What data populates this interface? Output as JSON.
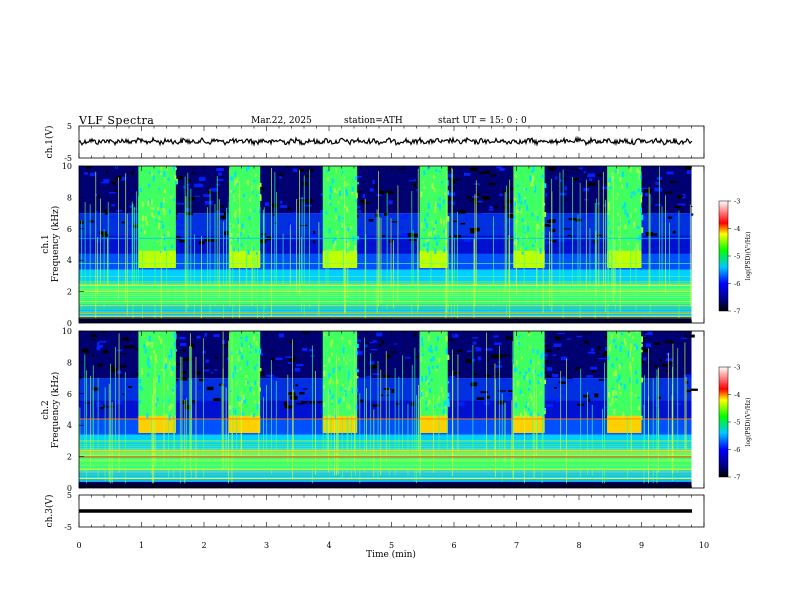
{
  "header": {
    "title": "VLF  Spectra",
    "date": "Mar.22, 2025",
    "station": "station=ATH",
    "start": "start  UT  =   15: 0  : 0"
  },
  "chart_data": [
    {
      "type": "line",
      "name": "ch1-waveform",
      "ylabel": "ch.1(V)",
      "ylim": [
        -5,
        5
      ],
      "yticks": [
        5,
        -5
      ],
      "xlim": [
        0,
        10
      ],
      "description_level": 0.2,
      "color": "#000000"
    },
    {
      "type": "heatmap",
      "name": "ch1-spectrogram",
      "ylabel": "ch.1\nFrequency  (kHz)",
      "ylabel_line1": "ch.1",
      "ylabel_line2": "Frequency  (kHz)",
      "ylim": [
        0,
        10
      ],
      "yticks": [
        "0",
        "2",
        "4",
        "6",
        "8",
        "10"
      ],
      "xlim": [
        0,
        9.8
      ],
      "colorbar": {
        "label": "log(PSD)(V²/Hz)",
        "range": [
          -7,
          -3
        ],
        "ticks": [
          "-3",
          "-4",
          "-5",
          "-6",
          "-7"
        ]
      },
      "bright_intervals_min": [
        [
          0.95,
          1.55
        ],
        [
          2.4,
          2.9
        ],
        [
          3.9,
          4.45
        ],
        [
          5.45,
          5.9
        ],
        [
          6.95,
          7.45
        ],
        [
          8.45,
          9.0
        ]
      ]
    },
    {
      "type": "heatmap",
      "name": "ch2-spectrogram",
      "ylabel_line1": "ch.2",
      "ylabel_line2": "Frequency  (kHz)",
      "ylim": [
        0,
        10
      ],
      "yticks": [
        "0",
        "2",
        "4",
        "6",
        "8",
        "10"
      ],
      "xlim": [
        0,
        9.8
      ],
      "colorbar": {
        "label": "log(PSD)(V²/Hz)",
        "range": [
          -7,
          -3
        ],
        "ticks": [
          "-3",
          "-4",
          "-5",
          "-6",
          "-7"
        ]
      },
      "bright_intervals_min": [
        [
          0.95,
          1.55
        ],
        [
          2.4,
          2.9
        ],
        [
          3.9,
          4.45
        ],
        [
          5.45,
          5.9
        ],
        [
          6.95,
          7.45
        ],
        [
          8.45,
          9.0
        ]
      ]
    },
    {
      "type": "line",
      "name": "ch3-waveform",
      "ylabel": "ch.3(V)",
      "ylim": [
        -5,
        5
      ],
      "yticks": [
        5,
        -5
      ],
      "xlim": [
        0,
        10
      ],
      "level": -2.6,
      "color": "#000000"
    }
  ],
  "xaxis": {
    "label": "Time  (min)",
    "range": [
      0,
      10
    ],
    "ticks": [
      "0",
      "1",
      "2",
      "3",
      "4",
      "5",
      "6",
      "7",
      "8",
      "9",
      "10"
    ]
  }
}
